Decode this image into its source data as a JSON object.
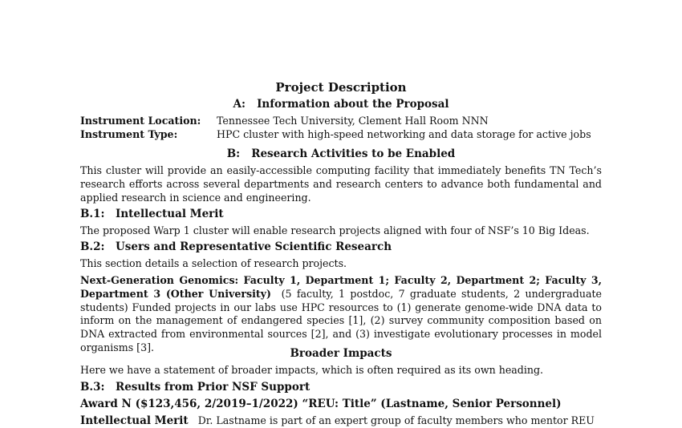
{
  "doc": {
    "title": "Project Description",
    "sectionA": {
      "num": "A:",
      "title": "Information about the Proposal"
    },
    "instrument_location": {
      "label": "Instrument Location:",
      "value": "Tennessee Tech University, Clement Hall Room NNN"
    },
    "instrument_type": {
      "label": "Instrument Type:",
      "value": "HPC cluster with high-speed networking and data storage for active jobs"
    },
    "sectionB": {
      "num": "B:",
      "title": "Research Activities to be Enabled"
    },
    "b_paragraph": "This cluster will provide an easily-accessible computing facility that immediately benefits TN Tech’s research efforts across several departments and research centers to advance both fundamental and applied research in science and engineering.",
    "b1": {
      "num": "B.1:",
      "title": "Intellectual Merit",
      "text": "The proposed Warp 1 cluster will enable research projects aligned with four of NSF’s 10 Big Ideas."
    },
    "b2": {
      "num": "B.2:",
      "title": "Users and Representative Scientific Research",
      "text": "This section details a selection of research projects."
    },
    "genomics": {
      "heading": "Next-Generation Genomics: Faculty 1, Department 1; Faculty 2, Department 2; Faculty 3, Department 3 (Other University)",
      "text": "(5 faculty, 1 postdoc, 7 graduate students, 2 undergraduate students) Funded projects in our labs use HPC resources to (1) generate genome-wide DNA data to inform on the management of endangered species [1], (2) survey community composition based on DNA extracted from environmental sources [2], and (3) investigate evolutionary processes in model organisms [3]."
    },
    "broader": {
      "title": "Broader Impacts",
      "text": "Here we have a statement of broader impacts, which is often required as its own heading."
    },
    "b3": {
      "num": "B.3:",
      "title": "Results from Prior NSF Support"
    },
    "award": "Award N ($123,456, 2/2019–1/2022) “REU: Title” (Lastname, Senior Personnel)",
    "im_heading": "Intellectual Merit",
    "im_text": "Dr. Lastname is part of an expert group of faculty members who mentor REU"
  }
}
